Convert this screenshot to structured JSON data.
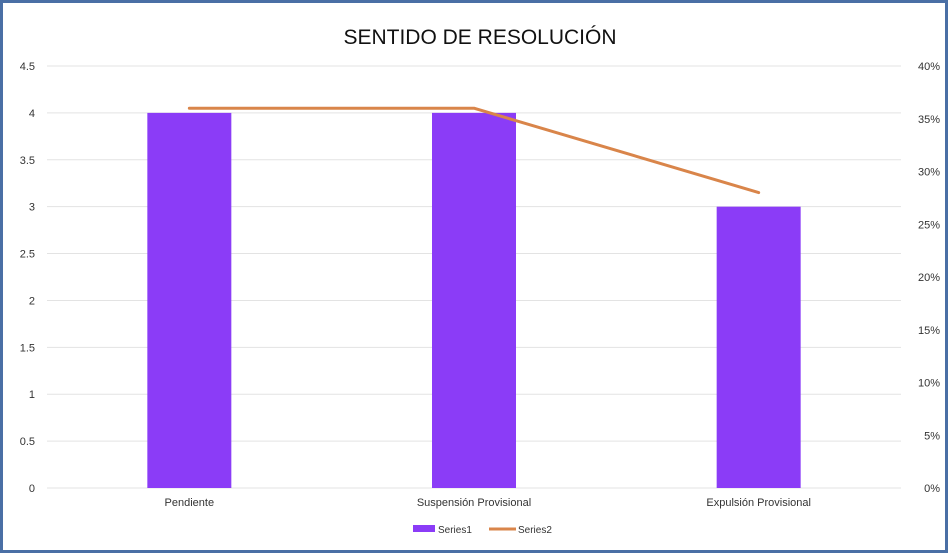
{
  "chart_data": {
    "type": "bar",
    "title": "SENTIDO DE RESOLUCIÓN",
    "categories": [
      "Pendiente",
      "Suspensión Provisional",
      "Expulsión Provisional"
    ],
    "series": [
      {
        "name": "Series1",
        "type": "bar",
        "axis": "left",
        "color": "#8b3cf7",
        "values": [
          4,
          4,
          3
        ]
      },
      {
        "name": "Series2",
        "type": "line",
        "axis": "right",
        "color": "#d9854a",
        "values": [
          0.36,
          0.36,
          0.28
        ]
      }
    ],
    "y_left": {
      "ylim": [
        0,
        4.5
      ],
      "ticks": [
        "0",
        "0.5",
        "1",
        "1.5",
        "2",
        "2.5",
        "3",
        "3.5",
        "4",
        "4.5"
      ]
    },
    "y_right": {
      "ylim": [
        0,
        0.4
      ],
      "ticks": [
        "0%",
        "5%",
        "10%",
        "15%",
        "20%",
        "25%",
        "30%",
        "35%",
        "40%"
      ]
    },
    "grid": true,
    "legend_position": "bottom"
  },
  "colors": {
    "frame_border": "#4a6fa5",
    "gridline": "#e3e3e3"
  }
}
